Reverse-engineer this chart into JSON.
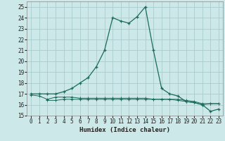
{
  "xlabel": "Humidex (Indice chaleur)",
  "bg_color": "#cce8e8",
  "grid_color": "#aacccc",
  "line_color": "#1a6b5a",
  "x_main": [
    0,
    1,
    2,
    3,
    4,
    5,
    6,
    7,
    8,
    9,
    10,
    11,
    12,
    13,
    14,
    15,
    16,
    17,
    18,
    19,
    20,
    21,
    22,
    23
  ],
  "y_main": [
    17,
    17,
    17,
    17,
    17.2,
    17.5,
    18,
    18.5,
    19.5,
    21,
    24,
    23.7,
    23.5,
    24.1,
    25,
    21,
    17.5,
    17,
    16.8,
    16.3,
    16.2,
    16,
    15.4,
    15.6
  ],
  "x_flat1": [
    0,
    1,
    2,
    3,
    4,
    5,
    6,
    7,
    8,
    9,
    10,
    11,
    12,
    13,
    14,
    15,
    16,
    17,
    18,
    19,
    20,
    21,
    22,
    23
  ],
  "y_flat1": [
    16.9,
    16.8,
    16.5,
    16.7,
    16.7,
    16.7,
    16.6,
    16.6,
    16.6,
    16.6,
    16.6,
    16.6,
    16.6,
    16.6,
    16.6,
    16.5,
    16.5,
    16.5,
    16.5,
    16.4,
    16.3,
    16.1,
    16.1,
    16.1
  ],
  "x_flat2": [
    2,
    3,
    4,
    5,
    6,
    7,
    8,
    9,
    10,
    11,
    12,
    13,
    14,
    15,
    16,
    17,
    18,
    19,
    20,
    21,
    22,
    23
  ],
  "y_flat2": [
    16.4,
    16.4,
    16.5,
    16.5,
    16.5,
    16.5,
    16.5,
    16.5,
    16.5,
    16.5,
    16.5,
    16.5,
    16.5,
    16.5,
    16.5,
    16.5,
    16.4,
    16.3,
    16.2,
    16.0,
    16.1,
    16.1
  ],
  "ylim": [
    15,
    25.5
  ],
  "xlim": [
    -0.5,
    23.5
  ],
  "yticks": [
    15,
    16,
    17,
    18,
    19,
    20,
    21,
    22,
    23,
    24,
    25
  ],
  "xticks": [
    0,
    1,
    2,
    3,
    4,
    5,
    6,
    7,
    8,
    9,
    10,
    11,
    12,
    13,
    14,
    15,
    16,
    17,
    18,
    19,
    20,
    21,
    22,
    23
  ]
}
